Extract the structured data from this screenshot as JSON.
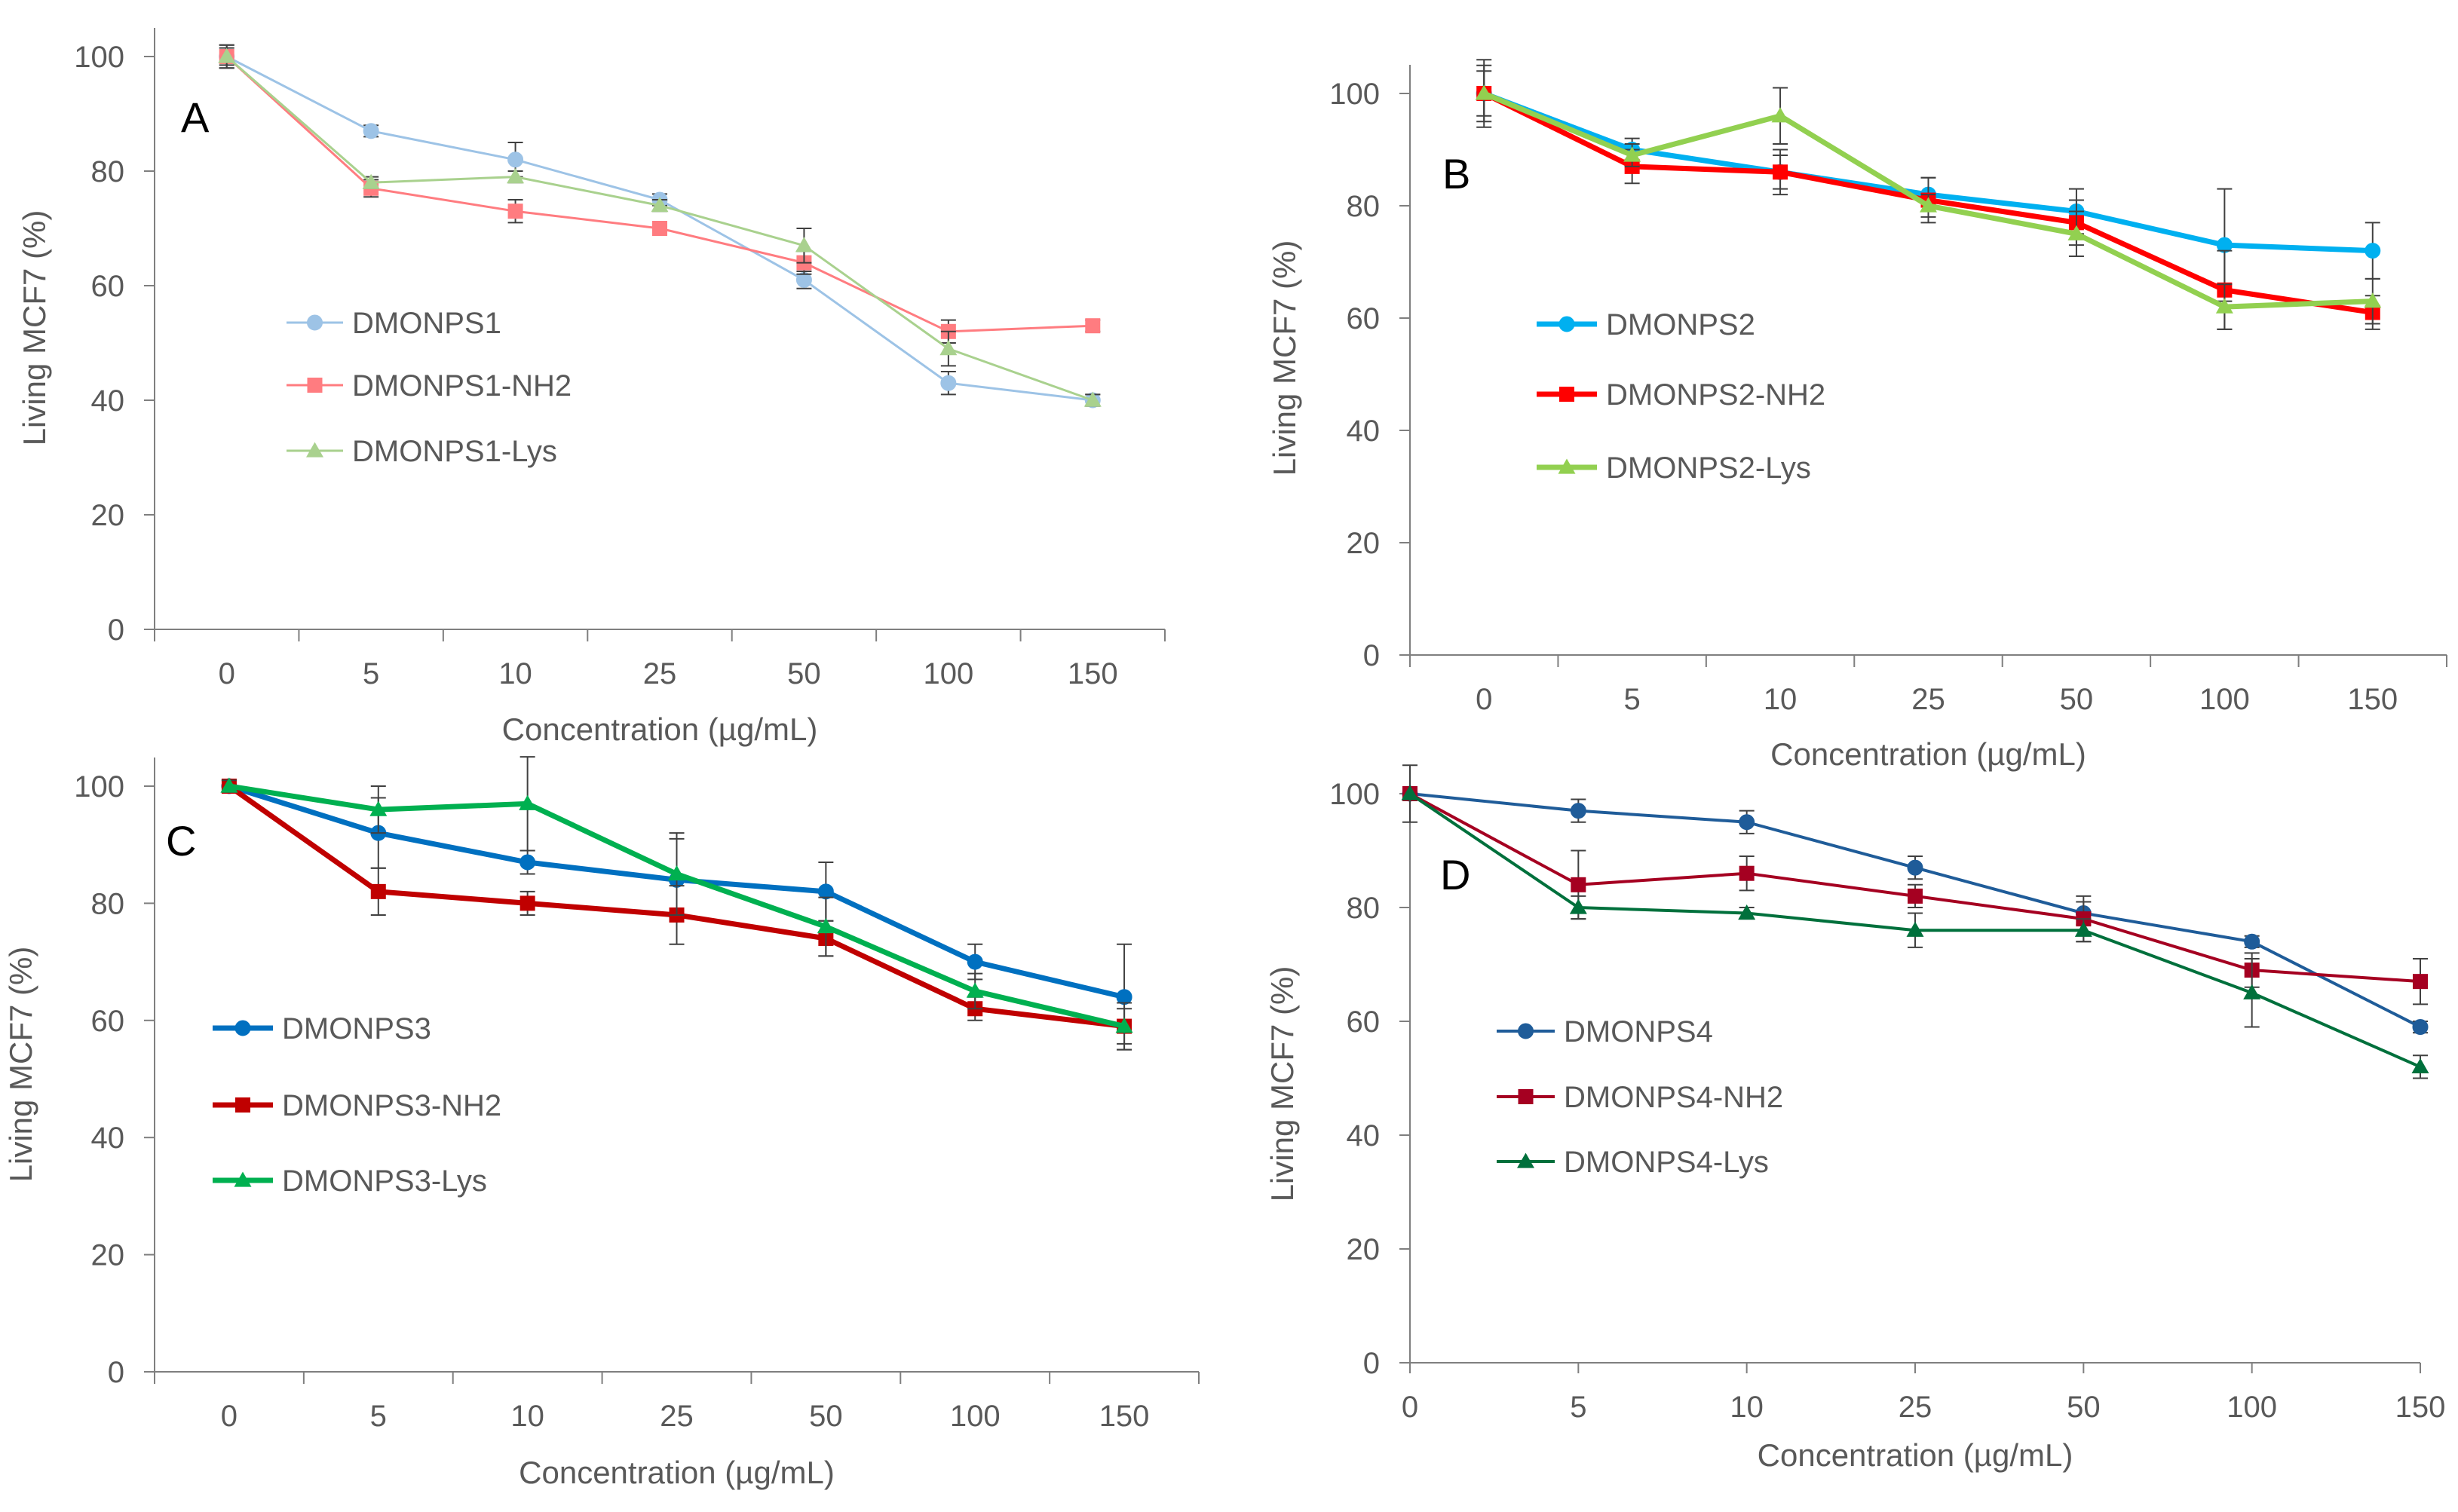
{
  "figure": {
    "x_axis_title": "Concentration (µg/mL)",
    "y_axis_title": "Living MCF7 (%)"
  },
  "chart_data": [
    {
      "type": "line",
      "panel": "A",
      "categories": [
        "0",
        "5",
        "10",
        "25",
        "50",
        "100",
        "150"
      ],
      "xlabel": "Concentration (µg/mL)",
      "ylabel": "Living MCF7 (%)",
      "ylim": [
        0,
        100
      ],
      "yticks": [
        0,
        20,
        40,
        60,
        80,
        100
      ],
      "grid": false,
      "legend_position": "center-left",
      "series": [
        {
          "name": "DMONPS1",
          "color": "#9DC3E6",
          "marker": "circle",
          "values": [
            100,
            87,
            82,
            75,
            61,
            43,
            40
          ],
          "errors": [
            2,
            1,
            3,
            1,
            1.5,
            2,
            1
          ]
        },
        {
          "name": "DMONPS1-NH2",
          "color": "#FF7C80",
          "marker": "square",
          "values": [
            100,
            77,
            73,
            70,
            64,
            52,
            53
          ],
          "errors": [
            2,
            1.5,
            2,
            1,
            2,
            2,
            1
          ]
        },
        {
          "name": "DMONPS1-Lys",
          "color": "#A9D18E",
          "marker": "triangle",
          "values": [
            100,
            78,
            79,
            74,
            67,
            49,
            40
          ],
          "errors": [
            1.5,
            1,
            1,
            1,
            3,
            3,
            1
          ]
        }
      ]
    },
    {
      "type": "line",
      "panel": "B",
      "categories": [
        "0",
        "5",
        "10",
        "25",
        "50",
        "100",
        "150"
      ],
      "xlabel": "Concentration (µg/mL)",
      "ylabel": "Living MCF7 (%)",
      "ylim": [
        0,
        100
      ],
      "yticks": [
        0,
        20,
        40,
        60,
        80,
        100
      ],
      "grid": false,
      "legend_position": "center-left",
      "series": [
        {
          "name": "DMONPS2",
          "color": "#00B0F0",
          "marker": "circle",
          "values": [
            100,
            90,
            86,
            82,
            79,
            73,
            72
          ],
          "errors": [
            5,
            2,
            3,
            3,
            4,
            10,
            5
          ]
        },
        {
          "name": "DMONPS2-NH2",
          "color": "#FF0000",
          "marker": "square",
          "values": [
            100,
            87,
            86,
            81,
            77,
            65,
            61
          ],
          "errors": [
            6,
            3,
            4,
            4,
            4,
            7,
            3
          ]
        },
        {
          "name": "DMONPS2-Lys",
          "color": "#92D050",
          "marker": "triangle",
          "values": [
            100,
            89,
            96,
            80,
            75,
            62,
            63
          ],
          "errors": [
            4,
            2,
            5,
            2,
            4,
            4,
            4
          ]
        }
      ]
    },
    {
      "type": "line",
      "panel": "C",
      "categories": [
        "0",
        "5",
        "10",
        "25",
        "50",
        "100",
        "150"
      ],
      "xlabel": "Concentration (µg/mL)",
      "ylabel": "Living MCF7 (%)",
      "ylim": [
        0,
        100
      ],
      "yticks": [
        0,
        20,
        40,
        60,
        80,
        100
      ],
      "grid": false,
      "legend_position": "center-left",
      "series": [
        {
          "name": "DMONPS3",
          "color": "#0070C0",
          "marker": "circle",
          "values": [
            100,
            92,
            87,
            84,
            82,
            70,
            64
          ],
          "errors": [
            1,
            6,
            2,
            7,
            5,
            3,
            9
          ]
        },
        {
          "name": "DMONPS3-NH2",
          "color": "#C00000",
          "marker": "square",
          "values": [
            100,
            82,
            80,
            78,
            74,
            62,
            59
          ],
          "errors": [
            1,
            4,
            2,
            5,
            3,
            2,
            4
          ]
        },
        {
          "name": "DMONPS3-Lys",
          "color": "#00B050",
          "marker": "triangle",
          "values": [
            100,
            96,
            97,
            85,
            76,
            65,
            59
          ],
          "errors": [
            1,
            4,
            8,
            7,
            5,
            3,
            3
          ]
        }
      ]
    },
    {
      "type": "line",
      "panel": "D",
      "categories": [
        "0",
        "5",
        "10",
        "25",
        "50",
        "100",
        "150"
      ],
      "xlabel": "Concentration (µg/mL)",
      "ylabel": "Living MCF7 (%)",
      "ylim": [
        0,
        100
      ],
      "yticks": [
        0,
        20,
        40,
        60,
        80,
        100
      ],
      "grid": false,
      "legend_position": "center-left",
      "series": [
        {
          "name": "DMONPS4",
          "color": "#1F5C99",
          "marker": "circle",
          "values": [
            100,
            97,
            95,
            87,
            79,
            74,
            59
          ],
          "errors": [
            1,
            2,
            2,
            2,
            2,
            1,
            1
          ]
        },
        {
          "name": "DMONPS4-NH2",
          "color": "#A50021",
          "marker": "square",
          "values": [
            100,
            84,
            86,
            82,
            78,
            69,
            67
          ],
          "errors": [
            1,
            6,
            3,
            2,
            4,
            3,
            4
          ]
        },
        {
          "name": "DMONPS4-Lys",
          "color": "#00703C",
          "marker": "triangle",
          "values": [
            100,
            80,
            79,
            76,
            76,
            65,
            52
          ],
          "errors": [
            5,
            2,
            1,
            3,
            2,
            6,
            2
          ]
        }
      ]
    }
  ]
}
